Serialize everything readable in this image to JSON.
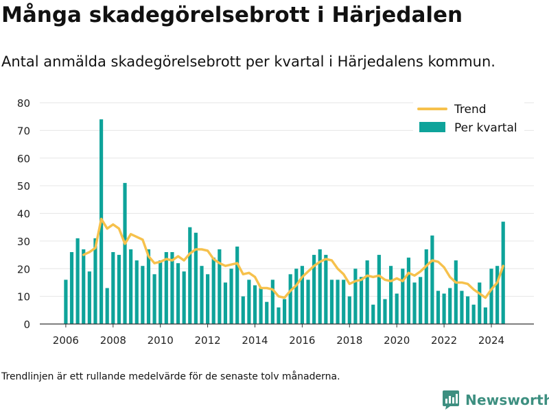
{
  "title": "Många skadegörelsebrott i Härjedalen",
  "subtitle": "Antal anmälda skadegörelsebrott per kvartal i Härjedalens kommun.",
  "footnote": "Trendlinjen är ett rullande medelvärde för de senaste tolv månaderna.",
  "brand": "Newsworthy",
  "colors": {
    "bars": "#0ea39a",
    "trend": "#f6c14c",
    "axis": "#333333",
    "grid": "#e6e6e6",
    "brand": "#3d8f80"
  },
  "chart_data": {
    "type": "bar",
    "x_start": 2006.0,
    "x_step": 0.25,
    "xlim": [
      2004.9,
      2025.8
    ],
    "ylim": [
      0,
      80
    ],
    "yticks": [
      0,
      10,
      20,
      30,
      40,
      50,
      60,
      70,
      80
    ],
    "xticks": [
      2006,
      2008,
      2010,
      2012,
      2014,
      2016,
      2018,
      2020,
      2022,
      2024
    ],
    "grid": true,
    "legend_position": "top-right",
    "series": [
      {
        "name": "Per kvartal",
        "type": "bar",
        "values": [
          16,
          26,
          31,
          27,
          19,
          31,
          74,
          13,
          26,
          25,
          51,
          27,
          23,
          21,
          27,
          18,
          23,
          26,
          26,
          22,
          19,
          35,
          33,
          21,
          18,
          24,
          27,
          15,
          20,
          28,
          10,
          16,
          14,
          13,
          8,
          16,
          6,
          9,
          18,
          20,
          21,
          16,
          25,
          27,
          25,
          16,
          16,
          16,
          10,
          20,
          17,
          23,
          7,
          25,
          9,
          21,
          11,
          20,
          24,
          15,
          17,
          27,
          32,
          12,
          11,
          13,
          23,
          12,
          10,
          7,
          15,
          6,
          20,
          21,
          37
        ]
      },
      {
        "name": "Trend",
        "type": "line",
        "x": [
          2006.75,
          2007.0,
          2007.25,
          2007.5,
          2007.75,
          2008.0,
          2008.25,
          2008.5,
          2008.75,
          2009.0,
          2009.25,
          2009.5,
          2009.75,
          2010.0,
          2010.25,
          2010.5,
          2010.75,
          2011.0,
          2011.25,
          2011.5,
          2011.75,
          2012.0,
          2012.25,
          2012.5,
          2012.75,
          2013.0,
          2013.25,
          2013.5,
          2013.75,
          2014.0,
          2014.25,
          2014.5,
          2014.75,
          2015.0,
          2015.25,
          2015.5,
          2015.75,
          2016.0,
          2016.25,
          2016.5,
          2016.75,
          2017.0,
          2017.25,
          2017.5,
          2017.75,
          2018.0,
          2018.25,
          2018.5,
          2018.75,
          2019.0,
          2019.25,
          2019.5,
          2019.75,
          2020.0,
          2020.25,
          2020.5,
          2020.75,
          2021.0,
          2021.25,
          2021.5,
          2021.75,
          2022.0,
          2022.25,
          2022.5,
          2022.75,
          2023.0,
          2023.25,
          2023.5,
          2023.75,
          2024.0,
          2024.25,
          2024.5
        ],
        "values": [
          25,
          26,
          27.5,
          38,
          34.5,
          36,
          34.5,
          29,
          32.5,
          31.5,
          30.5,
          24.5,
          22,
          22.5,
          23.5,
          23,
          24.5,
          23,
          25.5,
          27,
          27,
          26.5,
          23.5,
          22,
          21,
          21.5,
          22,
          18,
          18.5,
          17,
          13,
          13,
          12.5,
          10,
          9.5,
          12,
          14,
          17,
          19,
          21,
          22.5,
          23.5,
          23,
          20,
          18,
          14.5,
          15.5,
          16,
          17.5,
          17,
          17.5,
          16,
          15.5,
          16.5,
          15.5,
          18.5,
          17.5,
          19,
          21,
          23,
          22.5,
          20.5,
          17,
          15,
          15,
          14.5,
          12.5,
          11,
          9.5,
          12.5,
          15,
          21
        ]
      }
    ]
  }
}
